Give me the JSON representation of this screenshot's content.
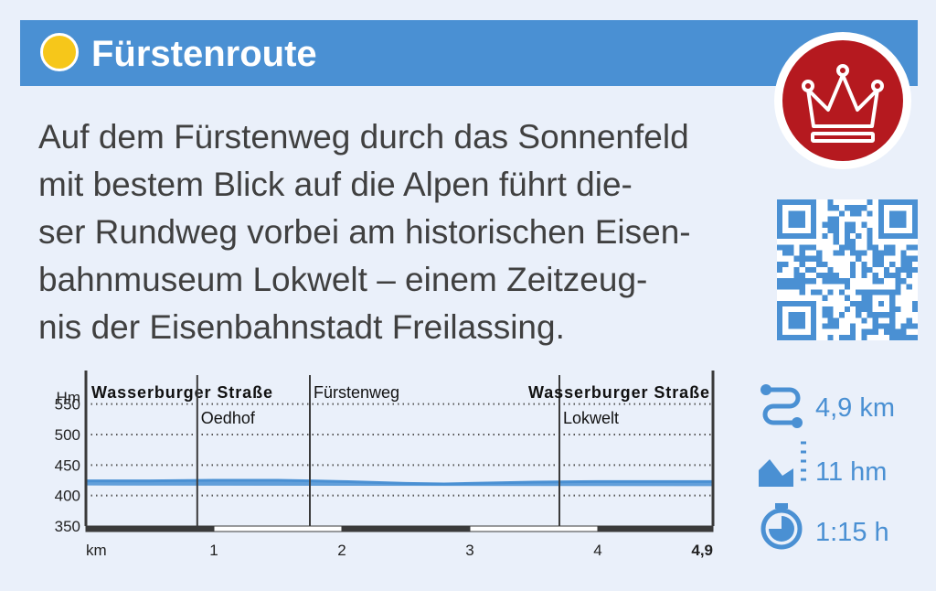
{
  "route": {
    "title": "Fürstenroute",
    "dot_color": "#f6c71a",
    "header_color": "#4a90d3",
    "badge_icon": "crown-icon",
    "badge_color": "#b5191f"
  },
  "description_lines": [
    "Auf dem Fürstenweg durch das Sonnenfeld",
    "mit bestem Blick auf die Alpen führt die-",
    "ser Rundweg vorbei am historischen Eisen-",
    "bahnmuseum Lokwelt – einem Zeitzeug-",
    "nis der Eisenbahnstadt Freilassing."
  ],
  "qr_code": {
    "icon": "qr-code-icon"
  },
  "stats": {
    "distance": {
      "icon": "route-icon",
      "value": "4,9 km"
    },
    "elevation": {
      "icon": "elevation-icon",
      "value": "11 hm"
    },
    "duration": {
      "icon": "stopwatch-icon",
      "value": "1:15 h"
    }
  },
  "chart_data": {
    "type": "area",
    "ylabel": "Hm",
    "xlabel": "km",
    "xlim": [
      0,
      4.9
    ],
    "ylim": [
      350,
      575
    ],
    "yticks": [
      350,
      400,
      450,
      500,
      550
    ],
    "xticks": [
      {
        "value": 1,
        "label": "1"
      },
      {
        "value": 2,
        "label": "2"
      },
      {
        "value": 3,
        "label": "3"
      },
      {
        "value": 4,
        "label": "4"
      },
      {
        "value": 4.9,
        "label": "4,9"
      }
    ],
    "grid": "dotted-horizontal",
    "color": "#4a90d3",
    "x": [
      0,
      0.5,
      1.0,
      1.5,
      1.75,
      2.0,
      2.5,
      2.8,
      3.0,
      3.5,
      4.0,
      4.5,
      4.9
    ],
    "y": [
      424,
      424,
      425,
      425,
      424,
      423,
      420,
      419,
      420,
      422,
      423,
      423,
      423
    ],
    "annotations": [
      {
        "x": 0,
        "top": "Wasserburger Straße",
        "bottom": "",
        "bold": true,
        "anchor": "start",
        "marker": false
      },
      {
        "x": 0.87,
        "top": "",
        "bottom": "Oedhof",
        "bold": false,
        "anchor": "start",
        "marker": true
      },
      {
        "x": 1.75,
        "top": "Fürstenweg",
        "bottom": "",
        "bold": false,
        "anchor": "start",
        "marker": true
      },
      {
        "x": 3.7,
        "top": "",
        "bottom": "Lokwelt",
        "bold": false,
        "anchor": "start",
        "marker": true
      },
      {
        "x": 4.9,
        "top": "Wasserburger Straße",
        "bottom": "",
        "bold": true,
        "anchor": "end",
        "marker": false
      }
    ]
  }
}
